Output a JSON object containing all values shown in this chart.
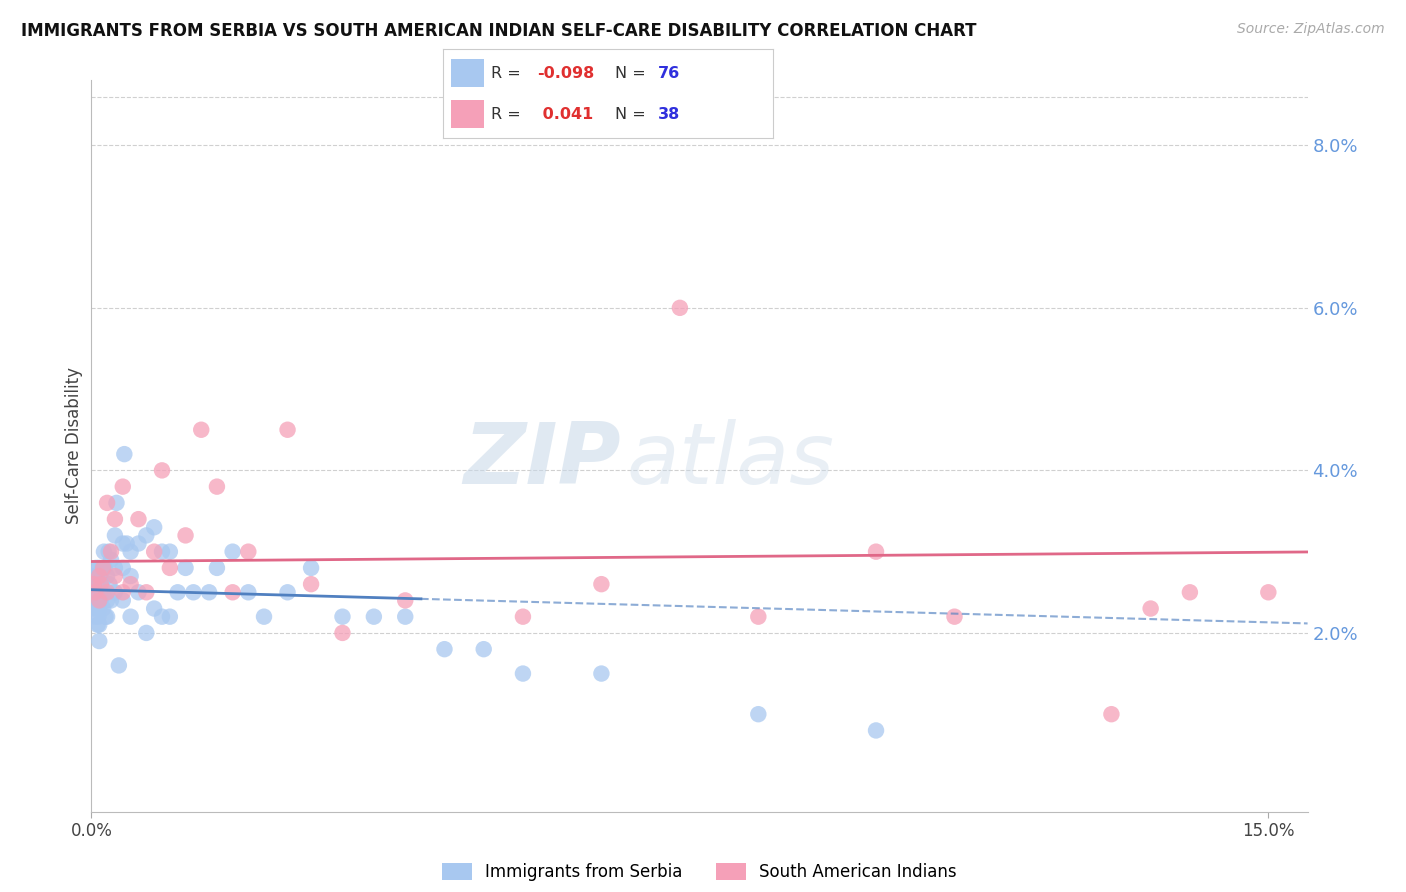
{
  "title": "IMMIGRANTS FROM SERBIA VS SOUTH AMERICAN INDIAN SELF-CARE DISABILITY CORRELATION CHART",
  "source": "Source: ZipAtlas.com",
  "ylabel": "Self-Care Disability",
  "right_ytick_vals": [
    0.08,
    0.06,
    0.04,
    0.02
  ],
  "right_ytick_labels": [
    "8.0%",
    "6.0%",
    "4.0%",
    "2.0%"
  ],
  "xlim": [
    0.0,
    0.155
  ],
  "ylim": [
    -0.002,
    0.088
  ],
  "watermark_zip": "ZIP",
  "watermark_atlas": "atlas",
  "serbia_dot_color": "#a8c8f0",
  "india_dot_color": "#f5a0b8",
  "serbia_line_color": "#5080c0",
  "india_line_color": "#e06888",
  "grid_color": "#d0d0d0",
  "legend_R_color": "#e03030",
  "legend_N_color": "#3030dd",
  "legend_R1": "-0.098",
  "legend_N1": "76",
  "legend_R2": "0.041",
  "legend_N2": "38",
  "serbia_x": [
    0.0002,
    0.0003,
    0.0004,
    0.0005,
    0.0005,
    0.0006,
    0.0006,
    0.0007,
    0.0007,
    0.0008,
    0.0008,
    0.0009,
    0.0009,
    0.001,
    0.001,
    0.001,
    0.001,
    0.001,
    0.0012,
    0.0012,
    0.0013,
    0.0014,
    0.0015,
    0.0015,
    0.0016,
    0.0017,
    0.0018,
    0.002,
    0.002,
    0.002,
    0.0022,
    0.0023,
    0.0025,
    0.0025,
    0.003,
    0.003,
    0.003,
    0.0032,
    0.0035,
    0.004,
    0.004,
    0.004,
    0.0042,
    0.0045,
    0.005,
    0.005,
    0.005,
    0.006,
    0.006,
    0.007,
    0.007,
    0.008,
    0.008,
    0.009,
    0.009,
    0.01,
    0.01,
    0.011,
    0.012,
    0.013,
    0.015,
    0.016,
    0.018,
    0.02,
    0.022,
    0.025,
    0.028,
    0.032,
    0.036,
    0.04,
    0.045,
    0.05,
    0.055,
    0.065,
    0.085,
    0.1
  ],
  "serbia_y": [
    0.027,
    0.025,
    0.023,
    0.026,
    0.022,
    0.028,
    0.024,
    0.025,
    0.027,
    0.023,
    0.021,
    0.026,
    0.022,
    0.028,
    0.025,
    0.023,
    0.021,
    0.019,
    0.027,
    0.024,
    0.026,
    0.028,
    0.025,
    0.023,
    0.03,
    0.028,
    0.022,
    0.027,
    0.024,
    0.022,
    0.03,
    0.026,
    0.029,
    0.024,
    0.032,
    0.028,
    0.025,
    0.036,
    0.016,
    0.031,
    0.028,
    0.024,
    0.042,
    0.031,
    0.03,
    0.027,
    0.022,
    0.031,
    0.025,
    0.032,
    0.02,
    0.033,
    0.023,
    0.03,
    0.022,
    0.03,
    0.022,
    0.025,
    0.028,
    0.025,
    0.025,
    0.028,
    0.03,
    0.025,
    0.022,
    0.025,
    0.028,
    0.022,
    0.022,
    0.022,
    0.018,
    0.018,
    0.015,
    0.015,
    0.01,
    0.008
  ],
  "india_x": [
    0.0003,
    0.0005,
    0.001,
    0.001,
    0.0012,
    0.0015,
    0.002,
    0.002,
    0.0025,
    0.003,
    0.003,
    0.004,
    0.004,
    0.005,
    0.006,
    0.007,
    0.008,
    0.009,
    0.01,
    0.012,
    0.014,
    0.016,
    0.018,
    0.02,
    0.025,
    0.028,
    0.032,
    0.04,
    0.055,
    0.065,
    0.075,
    0.085,
    0.1,
    0.11,
    0.13,
    0.135,
    0.14,
    0.15
  ],
  "india_y": [
    0.026,
    0.025,
    0.027,
    0.024,
    0.026,
    0.028,
    0.036,
    0.025,
    0.03,
    0.034,
    0.027,
    0.038,
    0.025,
    0.026,
    0.034,
    0.025,
    0.03,
    0.04,
    0.028,
    0.032,
    0.045,
    0.038,
    0.025,
    0.03,
    0.045,
    0.026,
    0.02,
    0.024,
    0.022,
    0.026,
    0.06,
    0.022,
    0.03,
    0.022,
    0.01,
    0.023,
    0.025,
    0.025
  ]
}
